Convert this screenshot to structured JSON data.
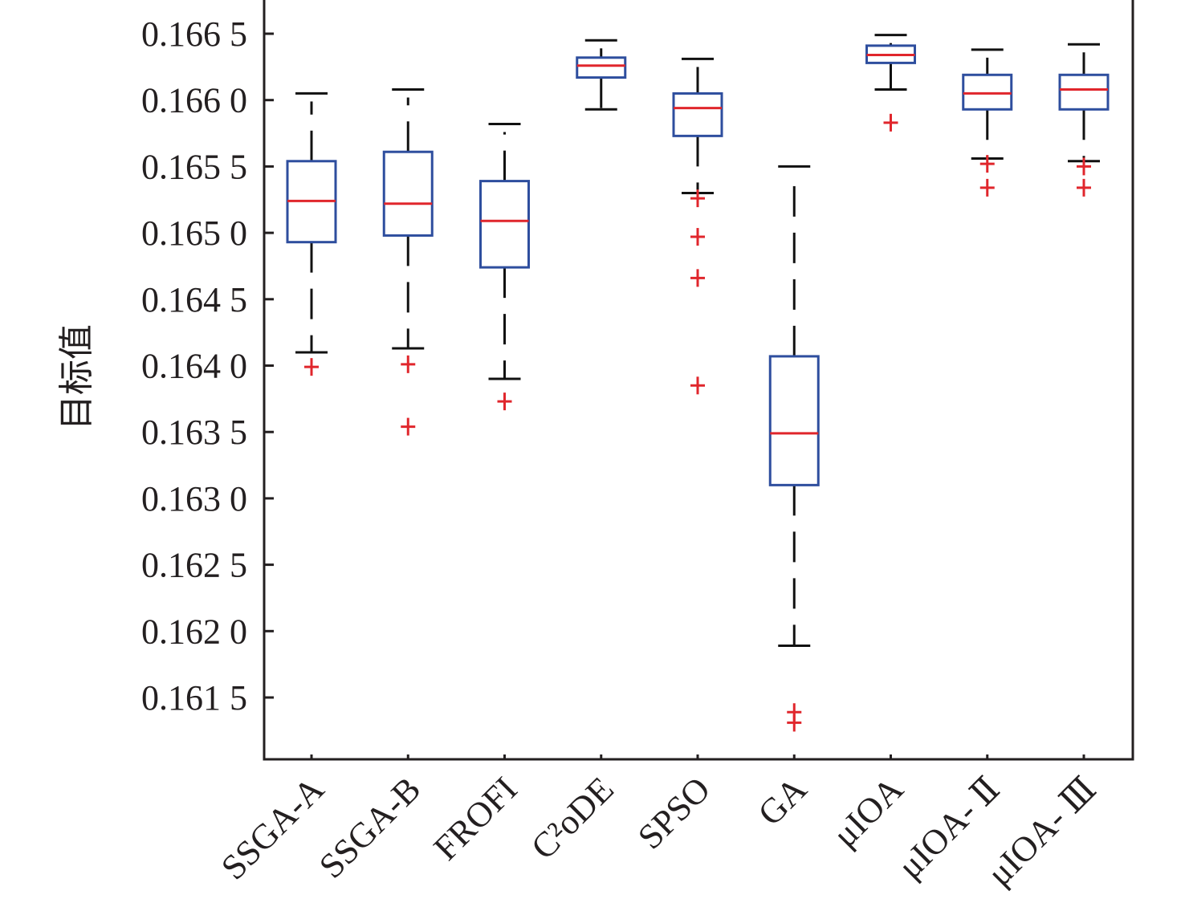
{
  "chart_data": {
    "type": "boxplot",
    "title": "",
    "xlabel": "",
    "ylabel": "目标值",
    "ylim": [
      0.16125,
      0.16668
    ],
    "yticks": [
      0.1615,
      0.162,
      0.1625,
      0.163,
      0.1635,
      0.164,
      0.1645,
      0.165,
      0.1655,
      0.166,
      0.1665
    ],
    "ytick_labels": [
      "0.161 5",
      "0.162 0",
      "0.162 5",
      "0.163 0",
      "0.163 5",
      "0.164 0",
      "0.164 5",
      "0.165 0",
      "0.165 5",
      "0.166 0",
      "0.166 5"
    ],
    "grid": false,
    "colors": {
      "box": "#2e4e9e",
      "median": "#e0262c",
      "whisker": "#111111",
      "outlier": "#e0262c",
      "axis": "#231f20"
    },
    "categories": [
      "SSGA-A",
      "SSGA-B",
      "FROFI",
      "C²oDE",
      "SPSO",
      "GA",
      "μIOA",
      "μIOA- Ⅱ",
      "μIOA- Ⅲ"
    ],
    "series": [
      {
        "name": "SSGA-A",
        "whisker_high": 0.16605,
        "q3": 0.16554,
        "median": 0.16524,
        "q1": 0.16493,
        "whisker_low": 0.1641,
        "outliers": [
          0.16399
        ]
      },
      {
        "name": "SSGA-B",
        "whisker_high": 0.16608,
        "q3": 0.16561,
        "median": 0.16522,
        "q1": 0.16498,
        "whisker_low": 0.16413,
        "outliers": [
          0.16401,
          0.16354
        ]
      },
      {
        "name": "FROFI",
        "whisker_high": 0.16582,
        "q3": 0.16539,
        "median": 0.16509,
        "q1": 0.16474,
        "whisker_low": 0.1639,
        "outliers": [
          0.16373
        ]
      },
      {
        "name": "C²oDE",
        "whisker_high": 0.16645,
        "q3": 0.16632,
        "median": 0.16626,
        "q1": 0.16617,
        "whisker_low": 0.16593,
        "outliers": []
      },
      {
        "name": "SPSO",
        "whisker_high": 0.16631,
        "q3": 0.16605,
        "median": 0.16594,
        "q1": 0.16573,
        "whisker_low": 0.1653,
        "outliers": [
          0.16526,
          0.16497,
          0.16466,
          0.16385
        ]
      },
      {
        "name": "GA",
        "whisker_high": 0.1655,
        "q3": 0.16407,
        "median": 0.16349,
        "q1": 0.1631,
        "whisker_low": 0.16189,
        "outliers": [
          0.16139,
          0.16131
        ]
      },
      {
        "name": "μIOA",
        "whisker_high": 0.16649,
        "q3": 0.16641,
        "median": 0.16634,
        "q1": 0.16628,
        "whisker_low": 0.16608,
        "outliers": [
          0.16583
        ]
      },
      {
        "name": "μIOA- Ⅱ",
        "whisker_high": 0.16638,
        "q3": 0.16619,
        "median": 0.16605,
        "q1": 0.16593,
        "whisker_low": 0.16556,
        "outliers": [
          0.16552,
          0.16534
        ]
      },
      {
        "name": "μIOA- Ⅲ",
        "whisker_high": 0.16642,
        "q3": 0.16619,
        "median": 0.16608,
        "q1": 0.16593,
        "whisker_low": 0.16554,
        "outliers": [
          0.1655,
          0.16534
        ]
      }
    ]
  }
}
